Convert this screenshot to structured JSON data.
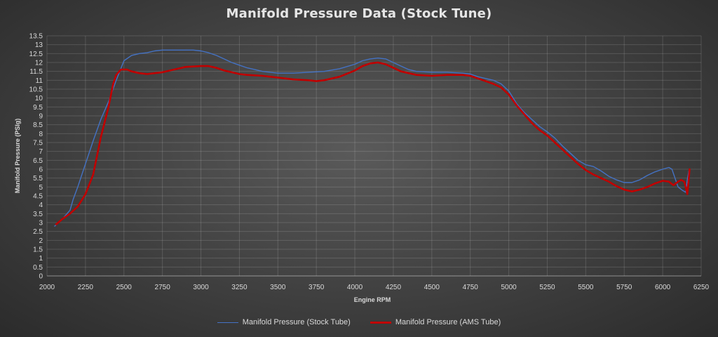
{
  "chart_data": {
    "type": "line",
    "title": "Manifold Pressure Data (Stock Tune)",
    "xlabel": "Engine RPM",
    "ylabel": "Manifold Pressure (PSIg)",
    "xlim": [
      2000,
      6250
    ],
    "ylim": [
      0,
      13.5
    ],
    "x_ticks": [
      2000,
      2250,
      2500,
      2750,
      3000,
      3250,
      3500,
      3750,
      4000,
      4250,
      4500,
      4750,
      5000,
      5250,
      5500,
      5750,
      6000,
      6250
    ],
    "x_tick_labels": [
      "2000",
      "2250",
      "2500",
      "2750",
      "3000",
      "3250",
      "3500",
      "3750",
      "4000",
      "4250",
      "4500",
      "4750",
      "5000",
      "5250",
      "5500",
      "5750",
      "6000",
      "6250"
    ],
    "y_ticks": [
      0,
      0.5,
      1,
      1.5,
      2,
      2.5,
      3,
      3.5,
      4,
      4.5,
      5,
      5.5,
      6,
      6.5,
      7,
      7.5,
      8,
      8.5,
      9,
      9.5,
      10,
      10.5,
      11,
      11.5,
      12,
      12.5,
      13,
      13.5
    ],
    "y_tick_labels": [
      "0",
      "0.5",
      "1",
      "1.5",
      "2",
      "2.5",
      "3",
      "3.5",
      "4",
      "4.5",
      "5",
      "5.5",
      "6",
      "6.5",
      "7",
      "7.5",
      "8",
      "8.5",
      "9",
      "9.5",
      "10",
      "10.5",
      "11",
      "11.5",
      "12",
      "12.5",
      "13",
      "13.5"
    ],
    "grid": true,
    "legend_position": "bottom",
    "series": [
      {
        "name": "Manifold Pressure (Stock Tube)",
        "color": "#4472c4",
        "points": [
          [
            2050,
            2.8
          ],
          [
            2100,
            3.2
          ],
          [
            2150,
            3.7
          ],
          [
            2170,
            4.3
          ],
          [
            2200,
            5.0
          ],
          [
            2250,
            6.3
          ],
          [
            2300,
            7.6
          ],
          [
            2350,
            8.8
          ],
          [
            2400,
            9.8
          ],
          [
            2450,
            11.0
          ],
          [
            2500,
            12.1
          ],
          [
            2550,
            12.4
          ],
          [
            2600,
            12.5
          ],
          [
            2650,
            12.55
          ],
          [
            2700,
            12.65
          ],
          [
            2750,
            12.7
          ],
          [
            2800,
            12.7
          ],
          [
            2850,
            12.7
          ],
          [
            2900,
            12.7
          ],
          [
            2950,
            12.7
          ],
          [
            3000,
            12.65
          ],
          [
            3050,
            12.55
          ],
          [
            3100,
            12.4
          ],
          [
            3150,
            12.2
          ],
          [
            3200,
            12.0
          ],
          [
            3250,
            11.85
          ],
          [
            3300,
            11.7
          ],
          [
            3350,
            11.6
          ],
          [
            3400,
            11.5
          ],
          [
            3500,
            11.4
          ],
          [
            3600,
            11.4
          ],
          [
            3700,
            11.45
          ],
          [
            3800,
            11.5
          ],
          [
            3900,
            11.65
          ],
          [
            4000,
            11.9
          ],
          [
            4050,
            12.1
          ],
          [
            4100,
            12.2
          ],
          [
            4150,
            12.25
          ],
          [
            4200,
            12.2
          ],
          [
            4250,
            12.0
          ],
          [
            4300,
            11.8
          ],
          [
            4350,
            11.6
          ],
          [
            4400,
            11.5
          ],
          [
            4500,
            11.45
          ],
          [
            4600,
            11.45
          ],
          [
            4700,
            11.4
          ],
          [
            4750,
            11.35
          ],
          [
            4800,
            11.2
          ],
          [
            4900,
            11.0
          ],
          [
            4950,
            10.8
          ],
          [
            5000,
            10.4
          ],
          [
            5050,
            9.7
          ],
          [
            5100,
            9.2
          ],
          [
            5150,
            8.8
          ],
          [
            5200,
            8.4
          ],
          [
            5250,
            8.1
          ],
          [
            5300,
            7.75
          ],
          [
            5350,
            7.3
          ],
          [
            5400,
            6.9
          ],
          [
            5450,
            6.5
          ],
          [
            5500,
            6.25
          ],
          [
            5550,
            6.15
          ],
          [
            5600,
            5.9
          ],
          [
            5650,
            5.6
          ],
          [
            5700,
            5.4
          ],
          [
            5750,
            5.25
          ],
          [
            5800,
            5.25
          ],
          [
            5850,
            5.4
          ],
          [
            5900,
            5.65
          ],
          [
            5950,
            5.85
          ],
          [
            6000,
            6.0
          ],
          [
            6040,
            6.1
          ],
          [
            6060,
            6.0
          ],
          [
            6080,
            5.5
          ],
          [
            6100,
            5.0
          ],
          [
            6130,
            4.8
          ],
          [
            6150,
            4.7
          ],
          [
            6160,
            5.4
          ],
          [
            6170,
            5.9
          ]
        ]
      },
      {
        "name": "Manifold Pressure (AMS Tube)",
        "color": "#c00000",
        "points": [
          [
            2060,
            2.9
          ],
          [
            2100,
            3.2
          ],
          [
            2150,
            3.5
          ],
          [
            2200,
            3.9
          ],
          [
            2250,
            4.6
          ],
          [
            2300,
            5.7
          ],
          [
            2350,
            7.8
          ],
          [
            2400,
            9.5
          ],
          [
            2430,
            10.8
          ],
          [
            2450,
            11.3
          ],
          [
            2480,
            11.6
          ],
          [
            2520,
            11.6
          ],
          [
            2550,
            11.5
          ],
          [
            2600,
            11.4
          ],
          [
            2650,
            11.35
          ],
          [
            2700,
            11.4
          ],
          [
            2750,
            11.45
          ],
          [
            2800,
            11.55
          ],
          [
            2850,
            11.65
          ],
          [
            2900,
            11.75
          ],
          [
            3000,
            11.8
          ],
          [
            3050,
            11.8
          ],
          [
            3100,
            11.7
          ],
          [
            3150,
            11.55
          ],
          [
            3200,
            11.45
          ],
          [
            3250,
            11.35
          ],
          [
            3300,
            11.3
          ],
          [
            3400,
            11.25
          ],
          [
            3500,
            11.15
          ],
          [
            3600,
            11.05
          ],
          [
            3700,
            11.0
          ],
          [
            3750,
            10.95
          ],
          [
            3800,
            11.0
          ],
          [
            3900,
            11.2
          ],
          [
            4000,
            11.55
          ],
          [
            4050,
            11.8
          ],
          [
            4100,
            11.95
          ],
          [
            4150,
            12.0
          ],
          [
            4200,
            11.9
          ],
          [
            4250,
            11.7
          ],
          [
            4300,
            11.5
          ],
          [
            4400,
            11.3
          ],
          [
            4500,
            11.25
          ],
          [
            4600,
            11.3
          ],
          [
            4700,
            11.3
          ],
          [
            4750,
            11.25
          ],
          [
            4800,
            11.1
          ],
          [
            4900,
            10.8
          ],
          [
            4950,
            10.6
          ],
          [
            5000,
            10.2
          ],
          [
            5050,
            9.6
          ],
          [
            5100,
            9.1
          ],
          [
            5150,
            8.6
          ],
          [
            5200,
            8.2
          ],
          [
            5250,
            7.9
          ],
          [
            5300,
            7.5
          ],
          [
            5350,
            7.1
          ],
          [
            5400,
            6.7
          ],
          [
            5450,
            6.3
          ],
          [
            5500,
            5.95
          ],
          [
            5550,
            5.7
          ],
          [
            5600,
            5.5
          ],
          [
            5650,
            5.3
          ],
          [
            5700,
            5.05
          ],
          [
            5750,
            4.85
          ],
          [
            5800,
            4.75
          ],
          [
            5850,
            4.85
          ],
          [
            5900,
            5.0
          ],
          [
            5950,
            5.2
          ],
          [
            6000,
            5.35
          ],
          [
            6040,
            5.3
          ],
          [
            6070,
            5.1
          ],
          [
            6100,
            5.3
          ],
          [
            6120,
            5.4
          ],
          [
            6140,
            5.3
          ],
          [
            6150,
            5.0
          ],
          [
            6160,
            4.6
          ],
          [
            6170,
            5.5
          ],
          [
            6175,
            6.0
          ]
        ]
      }
    ]
  }
}
